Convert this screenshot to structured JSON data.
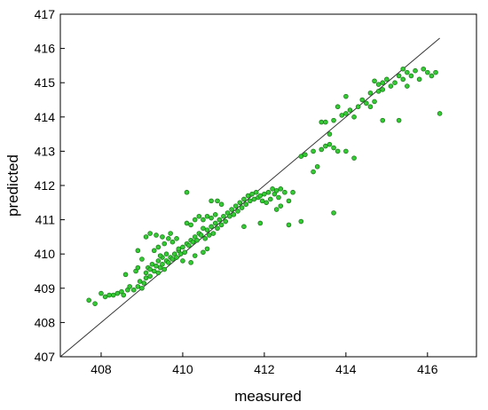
{
  "chart_data": {
    "type": "scatter",
    "title": "",
    "xlabel": "measured",
    "ylabel": "predicted",
    "xlim": [
      407,
      417.2
    ],
    "ylim": [
      407,
      417
    ],
    "x_ticks": [
      408,
      410,
      412,
      414,
      416
    ],
    "y_ticks": [
      407,
      408,
      409,
      410,
      411,
      412,
      413,
      414,
      415,
      416,
      417
    ],
    "grid": false,
    "reference_line": {
      "from": [
        407,
        407
      ],
      "to": [
        416.3,
        416.3
      ]
    },
    "colors": {
      "marker_fill": "#33cc33",
      "marker_edge": "#1e7a1e",
      "line": "#333333"
    },
    "series": [
      {
        "points": [
          [
            407.7,
            408.65
          ],
          [
            407.85,
            408.55
          ],
          [
            408.0,
            408.85
          ],
          [
            408.1,
            408.75
          ],
          [
            408.2,
            408.8
          ],
          [
            408.3,
            408.8
          ],
          [
            408.4,
            408.85
          ],
          [
            408.5,
            408.9
          ],
          [
            408.55,
            408.8
          ],
          [
            408.65,
            408.95
          ],
          [
            408.7,
            409.05
          ],
          [
            408.8,
            408.95
          ],
          [
            408.9,
            409.05
          ],
          [
            408.95,
            409.2
          ],
          [
            408.6,
            409.4
          ],
          [
            408.85,
            409.5
          ],
          [
            408.9,
            409.6
          ],
          [
            409.0,
            409.0
          ],
          [
            409.05,
            409.15
          ],
          [
            409.1,
            409.3
          ],
          [
            409.1,
            409.45
          ],
          [
            409.15,
            409.6
          ],
          [
            409.2,
            409.55
          ],
          [
            409.2,
            409.35
          ],
          [
            409.25,
            409.7
          ],
          [
            409.3,
            409.5
          ],
          [
            409.35,
            409.65
          ],
          [
            409.4,
            409.45
          ],
          [
            409.4,
            409.8
          ],
          [
            409.45,
            409.6
          ],
          [
            409.5,
            409.7
          ],
          [
            409.5,
            409.9
          ],
          [
            409.55,
            409.55
          ],
          [
            409.6,
            409.8
          ],
          [
            409.65,
            409.75
          ],
          [
            409.7,
            409.9
          ],
          [
            409.75,
            409.85
          ],
          [
            409.8,
            410.0
          ],
          [
            409.85,
            409.9
          ],
          [
            409.9,
            410.1
          ],
          [
            409.95,
            410.0
          ],
          [
            410.0,
            410.2
          ],
          [
            410.05,
            410.05
          ],
          [
            410.1,
            410.3
          ],
          [
            410.15,
            410.25
          ],
          [
            410.2,
            410.4
          ],
          [
            410.25,
            410.35
          ],
          [
            410.3,
            410.5
          ],
          [
            410.35,
            410.4
          ],
          [
            410.4,
            410.6
          ],
          [
            410.45,
            410.55
          ],
          [
            410.5,
            410.75
          ],
          [
            410.55,
            410.45
          ],
          [
            410.6,
            410.7
          ],
          [
            410.65,
            410.55
          ],
          [
            410.7,
            410.8
          ],
          [
            410.75,
            410.6
          ],
          [
            410.8,
            410.9
          ],
          [
            410.85,
            410.75
          ],
          [
            410.9,
            411.0
          ],
          [
            410.95,
            410.85
          ],
          [
            411.0,
            411.1
          ],
          [
            411.05,
            410.95
          ],
          [
            411.1,
            411.2
          ],
          [
            411.15,
            411.1
          ],
          [
            411.2,
            411.3
          ],
          [
            411.25,
            411.15
          ],
          [
            411.3,
            411.4
          ],
          [
            411.35,
            411.25
          ],
          [
            411.4,
            411.5
          ],
          [
            411.45,
            411.35
          ],
          [
            411.5,
            411.6
          ],
          [
            411.55,
            411.45
          ],
          [
            411.6,
            411.7
          ],
          [
            411.65,
            411.55
          ],
          [
            411.7,
            411.75
          ],
          [
            411.75,
            411.6
          ],
          [
            411.8,
            411.8
          ],
          [
            411.85,
            411.65
          ],
          [
            411.9,
            411.7
          ],
          [
            411.95,
            411.55
          ],
          [
            412.0,
            411.75
          ],
          [
            412.05,
            411.5
          ],
          [
            412.1,
            411.8
          ],
          [
            412.15,
            411.6
          ],
          [
            412.2,
            411.9
          ],
          [
            412.25,
            411.75
          ],
          [
            412.3,
            411.85
          ],
          [
            412.35,
            411.65
          ],
          [
            412.4,
            411.9
          ],
          [
            412.5,
            411.8
          ],
          [
            412.6,
            411.55
          ],
          [
            412.7,
            411.8
          ],
          [
            412.4,
            411.4
          ],
          [
            412.3,
            411.3
          ],
          [
            411.9,
            410.9
          ],
          [
            411.5,
            410.8
          ],
          [
            412.6,
            410.85
          ],
          [
            412.9,
            410.95
          ],
          [
            409.1,
            410.5
          ],
          [
            409.2,
            410.6
          ],
          [
            409.35,
            410.55
          ],
          [
            409.5,
            410.5
          ],
          [
            409.7,
            410.6
          ],
          [
            409.3,
            410.1
          ],
          [
            409.4,
            410.2
          ],
          [
            409.55,
            410.3
          ],
          [
            409.6,
            410.0
          ],
          [
            409.45,
            409.95
          ],
          [
            409.75,
            410.35
          ],
          [
            409.85,
            410.45
          ],
          [
            409.9,
            410.15
          ],
          [
            410.0,
            409.8
          ],
          [
            409.65,
            410.45
          ],
          [
            410.1,
            410.9
          ],
          [
            410.2,
            410.85
          ],
          [
            410.3,
            411.0
          ],
          [
            410.4,
            411.1
          ],
          [
            410.5,
            411.0
          ],
          [
            410.6,
            411.1
          ],
          [
            410.7,
            411.05
          ],
          [
            410.8,
            411.15
          ],
          [
            410.85,
            411.55
          ],
          [
            410.95,
            411.45
          ],
          [
            410.1,
            411.8
          ],
          [
            410.7,
            411.55
          ],
          [
            410.6,
            410.15
          ],
          [
            410.5,
            410.05
          ],
          [
            410.2,
            409.75
          ],
          [
            408.9,
            410.1
          ],
          [
            409.0,
            409.85
          ],
          [
            410.3,
            409.95
          ],
          [
            412.9,
            412.85
          ],
          [
            413.0,
            412.9
          ],
          [
            413.2,
            413.0
          ],
          [
            413.3,
            412.55
          ],
          [
            413.4,
            413.05
          ],
          [
            413.5,
            413.15
          ],
          [
            413.6,
            413.2
          ],
          [
            413.7,
            413.1
          ],
          [
            413.8,
            413.0
          ],
          [
            413.6,
            413.5
          ],
          [
            413.4,
            413.85
          ],
          [
            413.5,
            413.85
          ],
          [
            413.7,
            413.9
          ],
          [
            413.9,
            414.05
          ],
          [
            414.0,
            414.1
          ],
          [
            414.1,
            414.2
          ],
          [
            414.2,
            414.0
          ],
          [
            413.8,
            414.3
          ],
          [
            414.0,
            414.6
          ],
          [
            414.3,
            414.3
          ],
          [
            414.4,
            414.5
          ],
          [
            414.5,
            414.4
          ],
          [
            414.6,
            414.3
          ],
          [
            414.7,
            414.45
          ],
          [
            414.6,
            414.7
          ],
          [
            414.8,
            414.75
          ],
          [
            414.9,
            414.8
          ],
          [
            414.8,
            414.95
          ],
          [
            414.9,
            415.0
          ],
          [
            415.0,
            415.1
          ],
          [
            415.1,
            414.9
          ],
          [
            415.2,
            415.0
          ],
          [
            415.3,
            415.2
          ],
          [
            415.4,
            415.1
          ],
          [
            415.5,
            415.3
          ],
          [
            415.6,
            415.2
          ],
          [
            415.7,
            415.35
          ],
          [
            415.9,
            415.4
          ],
          [
            416.0,
            415.3
          ],
          [
            416.1,
            415.2
          ],
          [
            416.2,
            415.3
          ],
          [
            415.8,
            415.1
          ],
          [
            415.4,
            415.4
          ],
          [
            414.9,
            413.9
          ],
          [
            415.3,
            413.9
          ],
          [
            414.0,
            413.0
          ],
          [
            414.2,
            412.8
          ],
          [
            413.7,
            411.2
          ],
          [
            416.3,
            414.1
          ],
          [
            413.2,
            412.4
          ],
          [
            414.7,
            415.05
          ],
          [
            415.5,
            414.9
          ]
        ]
      }
    ]
  }
}
